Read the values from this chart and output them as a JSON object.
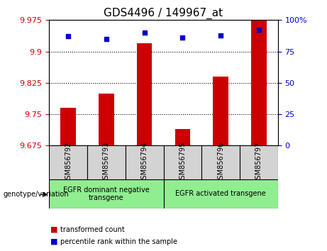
{
  "title": "GDS4496 / 149967_at",
  "samples": [
    "GSM856792",
    "GSM856793",
    "GSM856794",
    "GSM856795",
    "GSM856796",
    "GSM856797"
  ],
  "red_values": [
    9.765,
    9.8,
    9.92,
    9.715,
    9.84,
    9.975
  ],
  "blue_values": [
    87,
    85,
    90,
    86,
    88,
    92
  ],
  "ylim_left": [
    9.675,
    9.975
  ],
  "ylim_right": [
    0,
    100
  ],
  "yticks_left": [
    9.675,
    9.75,
    9.825,
    9.9,
    9.975
  ],
  "yticks_right": [
    0,
    25,
    50,
    75,
    100
  ],
  "yticklabels_right": [
    "0",
    "25",
    "50",
    "75",
    "100%"
  ],
  "left_color": "#cc0000",
  "right_color": "#0000cc",
  "group1_label": "EGFR dominant negative\ntransgene",
  "group2_label": "EGFR activated transgene",
  "group1_indices": [
    0,
    1,
    2
  ],
  "group2_indices": [
    3,
    4,
    5
  ],
  "genotype_label": "genotype/variation",
  "legend_red": "transformed count",
  "legend_blue": "percentile rank within the sample",
  "bar_width": 0.4,
  "base_value": 9.675
}
